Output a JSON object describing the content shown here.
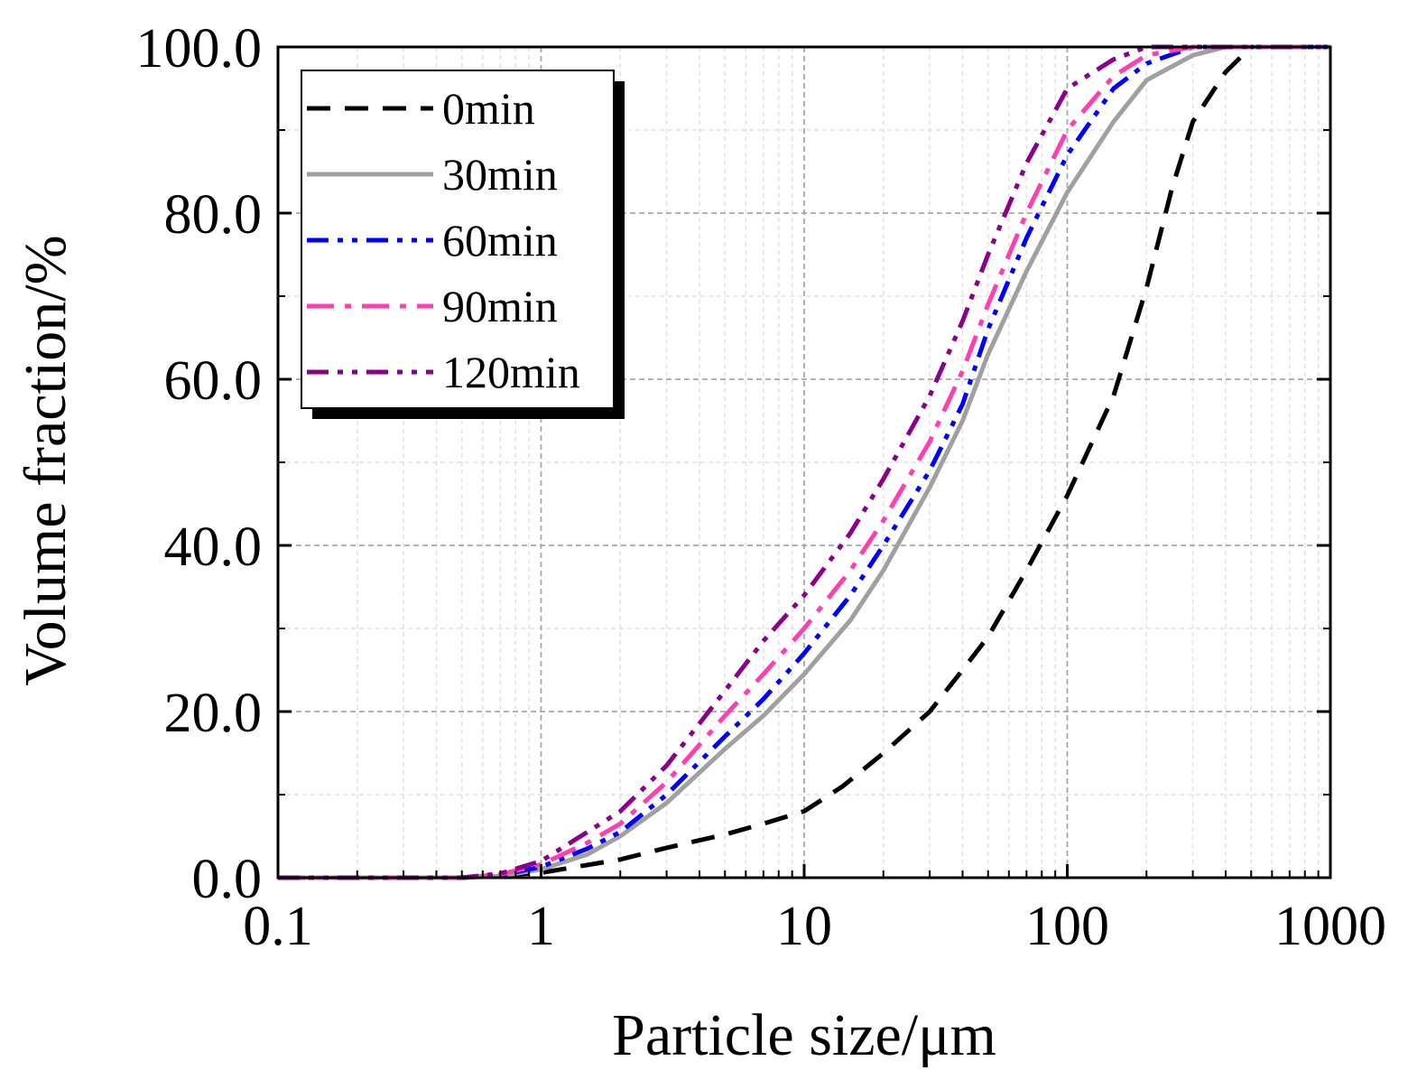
{
  "chart_data": {
    "type": "line",
    "xscale": "log",
    "xlabel": "Particle size/μm",
    "ylabel": "Volume fraction/%",
    "xlim": [
      0.1,
      1000
    ],
    "ylim": [
      0,
      100
    ],
    "x_ticks": [
      {
        "value": 0.1,
        "label": "0.1"
      },
      {
        "value": 1,
        "label": "1"
      },
      {
        "value": 10,
        "label": "10"
      },
      {
        "value": 100,
        "label": "100"
      },
      {
        "value": 1000,
        "label": "1000"
      }
    ],
    "y_ticks": [
      {
        "value": 0,
        "label": "0.0"
      },
      {
        "value": 20,
        "label": "20.0"
      },
      {
        "value": 40,
        "label": "40.0"
      },
      {
        "value": 60,
        "label": "60.0"
      },
      {
        "value": 80,
        "label": "80.0"
      },
      {
        "value": 100,
        "label": "100.0"
      }
    ],
    "grid": true,
    "legend_position": "top-left",
    "series": [
      {
        "name": "0min",
        "color": "#000000",
        "dash": "dash",
        "points": [
          [
            0.1,
            0
          ],
          [
            0.5,
            0
          ],
          [
            1,
            0.6
          ],
          [
            2,
            2.2
          ],
          [
            3,
            3.6
          ],
          [
            5,
            5.2
          ],
          [
            7,
            6.5
          ],
          [
            10,
            8
          ],
          [
            14,
            11
          ],
          [
            20,
            15
          ],
          [
            30,
            20
          ],
          [
            40,
            25
          ],
          [
            50,
            29
          ],
          [
            70,
            37
          ],
          [
            100,
            46
          ],
          [
            150,
            58
          ],
          [
            200,
            71
          ],
          [
            250,
            83
          ],
          [
            300,
            91
          ],
          [
            400,
            97
          ],
          [
            500,
            100
          ],
          [
            700,
            100
          ],
          [
            1000,
            100
          ]
        ]
      },
      {
        "name": "30min",
        "color": "#a0a0a0",
        "dash": "solid",
        "points": [
          [
            0.1,
            0
          ],
          [
            0.5,
            0
          ],
          [
            0.7,
            0.2
          ],
          [
            1,
            1
          ],
          [
            1.5,
            2.8
          ],
          [
            2,
            5
          ],
          [
            3,
            9
          ],
          [
            5,
            15.5
          ],
          [
            7,
            19.5
          ],
          [
            10,
            24.5
          ],
          [
            15,
            31
          ],
          [
            20,
            37
          ],
          [
            30,
            47
          ],
          [
            40,
            55
          ],
          [
            50,
            63
          ],
          [
            70,
            73
          ],
          [
            100,
            82.5
          ],
          [
            150,
            91
          ],
          [
            200,
            96
          ],
          [
            300,
            99
          ],
          [
            400,
            100
          ],
          [
            700,
            100
          ],
          [
            1000,
            100
          ]
        ]
      },
      {
        "name": "60min",
        "color": "#0000ff",
        "dash": "dashdotdot",
        "points": [
          [
            0.1,
            0
          ],
          [
            0.5,
            0
          ],
          [
            0.7,
            0.3
          ],
          [
            1,
            1.3
          ],
          [
            1.5,
            3.5
          ],
          [
            2,
            5.5
          ],
          [
            3,
            10
          ],
          [
            5,
            17
          ],
          [
            7,
            21.5
          ],
          [
            10,
            27
          ],
          [
            15,
            34
          ],
          [
            20,
            40
          ],
          [
            30,
            49
          ],
          [
            40,
            57
          ],
          [
            50,
            66
          ],
          [
            70,
            77
          ],
          [
            100,
            87
          ],
          [
            150,
            95
          ],
          [
            200,
            98
          ],
          [
            300,
            100
          ],
          [
            1000,
            100
          ]
        ]
      },
      {
        "name": "90min",
        "color": "#ff3fb0",
        "dash": "dashdot",
        "points": [
          [
            0.1,
            0
          ],
          [
            0.5,
            0
          ],
          [
            0.7,
            0.4
          ],
          [
            1,
            1.6
          ],
          [
            1.5,
            4.2
          ],
          [
            2,
            6.5
          ],
          [
            3,
            11.5
          ],
          [
            5,
            19.5
          ],
          [
            7,
            24.5
          ],
          [
            10,
            30
          ],
          [
            15,
            37
          ],
          [
            20,
            43
          ],
          [
            30,
            52.5
          ],
          [
            40,
            61
          ],
          [
            50,
            69
          ],
          [
            70,
            80
          ],
          [
            100,
            90
          ],
          [
            150,
            96.5
          ],
          [
            200,
            99
          ],
          [
            300,
            100
          ],
          [
            1000,
            100
          ]
        ]
      },
      {
        "name": "120min",
        "color": "#8b008b",
        "dash": "dashdotdot",
        "points": [
          [
            0.1,
            0
          ],
          [
            0.5,
            0
          ],
          [
            0.7,
            0.5
          ],
          [
            1,
            2
          ],
          [
            1.5,
            5.5
          ],
          [
            2,
            8
          ],
          [
            3,
            13.5
          ],
          [
            5,
            22.5
          ],
          [
            7,
            28.5
          ],
          [
            10,
            34
          ],
          [
            15,
            41.5
          ],
          [
            20,
            48
          ],
          [
            30,
            58
          ],
          [
            40,
            67
          ],
          [
            50,
            75
          ],
          [
            70,
            86
          ],
          [
            100,
            95
          ],
          [
            150,
            98.5
          ],
          [
            200,
            100
          ],
          [
            1000,
            100
          ]
        ]
      }
    ]
  }
}
